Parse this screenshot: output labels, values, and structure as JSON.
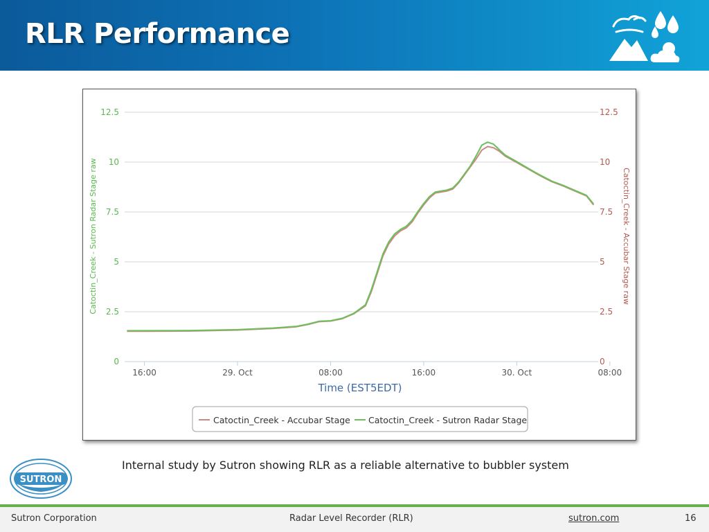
{
  "slide": {
    "title": "RLR Performance",
    "caption": "Internal study by Sutron showing RLR as a reliable alternative to bubbler system",
    "logo_text": "SUTRON",
    "footer": {
      "company": "Sutron Corporation",
      "product": "Radar Level Recorder (RLR)",
      "website": "sutron.com",
      "page_number": "16"
    },
    "colors": {
      "header_start": "#0b5a9a",
      "header_end": "#11a3d8",
      "footer_accent": "#6ab04c"
    },
    "icons": [
      "weather-logo-icon",
      "sutron-logo-icon"
    ]
  },
  "chart_data": {
    "type": "line",
    "xlabel": "Time (EST5EDT)",
    "x_ticks": [
      "16:00",
      "29. Oct",
      "08:00",
      "16:00",
      "30. Oct",
      "08:00"
    ],
    "y_left_label": "Catoctin_Creek - Sutron Radar Stage raw",
    "y_right_label": "Catoctin_Creek - Accubar Stage raw",
    "y_ticks": [
      "0",
      "2.5",
      "5",
      "7.5",
      "10",
      "12.5"
    ],
    "ylim": [
      0,
      12.5
    ],
    "x_unit": "hours from first x tick (16:00)",
    "xlim": [
      -1.7,
      39
    ],
    "grid": true,
    "legend_position": "bottom",
    "left_axis_color": "#5bb84f",
    "right_axis_color": "#b5594f",
    "series": [
      {
        "name": "Catoctin_Creek - Accubar Stage",
        "color": "#c98a82",
        "points": [
          [
            -1.5,
            1.52
          ],
          [
            0,
            1.52
          ],
          [
            4,
            1.53
          ],
          [
            8,
            1.58
          ],
          [
            11,
            1.66
          ],
          [
            13,
            1.74
          ],
          [
            14,
            1.85
          ],
          [
            15,
            2.0
          ],
          [
            16,
            2.03
          ],
          [
            17,
            2.15
          ],
          [
            18,
            2.4
          ],
          [
            19,
            2.8
          ],
          [
            19.5,
            3.5
          ],
          [
            20,
            4.4
          ],
          [
            20.5,
            5.3
          ],
          [
            21,
            5.9
          ],
          [
            21.5,
            6.3
          ],
          [
            22,
            6.55
          ],
          [
            22.5,
            6.7
          ],
          [
            23,
            7.0
          ],
          [
            23.5,
            7.45
          ],
          [
            24,
            7.85
          ],
          [
            24.5,
            8.2
          ],
          [
            25,
            8.45
          ],
          [
            26,
            8.55
          ],
          [
            26.5,
            8.65
          ],
          [
            27,
            8.95
          ],
          [
            27.5,
            9.35
          ],
          [
            28,
            9.75
          ],
          [
            28.5,
            10.15
          ],
          [
            29,
            10.6
          ],
          [
            29.5,
            10.78
          ],
          [
            30,
            10.72
          ],
          [
            30.5,
            10.55
          ],
          [
            31,
            10.3
          ],
          [
            32,
            9.98
          ],
          [
            33,
            9.65
          ],
          [
            34,
            9.32
          ],
          [
            35,
            9.02
          ],
          [
            36,
            8.8
          ],
          [
            37,
            8.55
          ],
          [
            38,
            8.3
          ],
          [
            38.6,
            7.85
          ]
        ]
      },
      {
        "name": "Catoctin_Creek - Sutron Radar Stage",
        "color": "#6cbf5a",
        "points": [
          [
            -1.5,
            1.55
          ],
          [
            0,
            1.55
          ],
          [
            4,
            1.56
          ],
          [
            8,
            1.6
          ],
          [
            11,
            1.68
          ],
          [
            13,
            1.76
          ],
          [
            14,
            1.87
          ],
          [
            15,
            2.02
          ],
          [
            16,
            2.05
          ],
          [
            17,
            2.17
          ],
          [
            18,
            2.42
          ],
          [
            19,
            2.85
          ],
          [
            19.5,
            3.6
          ],
          [
            20,
            4.5
          ],
          [
            20.5,
            5.4
          ],
          [
            21,
            6.0
          ],
          [
            21.5,
            6.4
          ],
          [
            22,
            6.62
          ],
          [
            22.5,
            6.78
          ],
          [
            23,
            7.08
          ],
          [
            23.5,
            7.52
          ],
          [
            24,
            7.92
          ],
          [
            24.5,
            8.27
          ],
          [
            25,
            8.5
          ],
          [
            26,
            8.6
          ],
          [
            26.5,
            8.7
          ],
          [
            27,
            9.0
          ],
          [
            27.5,
            9.4
          ],
          [
            28,
            9.8
          ],
          [
            28.5,
            10.3
          ],
          [
            29,
            10.85
          ],
          [
            29.5,
            11.0
          ],
          [
            30,
            10.9
          ],
          [
            30.5,
            10.62
          ],
          [
            31,
            10.35
          ],
          [
            32,
            10.02
          ],
          [
            33,
            9.68
          ],
          [
            34,
            9.35
          ],
          [
            35,
            9.05
          ],
          [
            36,
            8.83
          ],
          [
            37,
            8.58
          ],
          [
            38,
            8.33
          ],
          [
            38.6,
            7.9
          ]
        ]
      }
    ]
  }
}
